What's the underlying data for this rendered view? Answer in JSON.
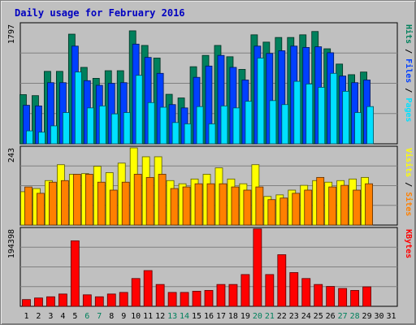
{
  "chart_data": {
    "type": "bar",
    "title": "Daily usage for February 2016",
    "days": [
      "1",
      "2",
      "3",
      "4",
      "5",
      "6",
      "7",
      "8",
      "9",
      "10",
      "11",
      "12",
      "13",
      "14",
      "15",
      "16",
      "17",
      "18",
      "19",
      "20",
      "21",
      "22",
      "23",
      "24",
      "25",
      "26",
      "27",
      "28",
      "29",
      "30",
      "31"
    ],
    "weekend_days": [
      6,
      7,
      13,
      14,
      20,
      21,
      27,
      28
    ],
    "grid": true,
    "panels": [
      {
        "id": "hits-files-pages",
        "max_label": "1797",
        "ylim": [
          0,
          1797
        ],
        "right_labels": [
          {
            "text": "Hits",
            "color": "#00805c"
          },
          {
            "text": " / ",
            "color": "#000000"
          },
          {
            "text": "Files",
            "color": "#0040ff"
          },
          {
            "text": " / ",
            "color": "#000000"
          },
          {
            "text": "Pages",
            "color": "#00e0ff"
          }
        ],
        "series": [
          {
            "name": "Hits",
            "color": "#00805c",
            "values": [
              740,
              725,
              1090,
              1090,
              1650,
              1150,
              985,
              1100,
              1100,
              1700,
              1480,
              1290,
              745,
              690,
              1160,
              1330,
              1480,
              1310,
              1120,
              1640,
              1530,
              1600,
              1600,
              1640,
              1690,
              1430,
              1200,
              1040,
              1080,
              0,
              0
            ]
          },
          {
            "name": "Files",
            "color": "#0040ff",
            "values": [
              580,
              570,
              920,
              920,
              1470,
              950,
              880,
              910,
              920,
              1500,
              1300,
              1060,
              590,
              540,
              1000,
              1170,
              1330,
              1150,
              960,
              1470,
              1360,
              1400,
              1470,
              1450,
              1460,
              1370,
              1020,
              920,
              960,
              0,
              0
            ]
          },
          {
            "name": "Pages",
            "color": "#00e0ff",
            "values": [
              195,
              175,
              270,
              470,
              1080,
              540,
              570,
              450,
              470,
              1030,
              620,
              550,
              320,
              300,
              560,
              300,
              570,
              540,
              640,
              1290,
              650,
              590,
              940,
              900,
              850,
              1060,
              790,
              470,
              560,
              0,
              0
            ]
          }
        ]
      },
      {
        "id": "visits-sites",
        "max_label": "243",
        "ylim": [
          0,
          243
        ],
        "right_labels": [
          {
            "text": "Visits",
            "color": "#ffff00"
          },
          {
            "text": " / ",
            "color": "#000000"
          },
          {
            "text": "Sites",
            "color": "#ff8000"
          }
        ],
        "series": [
          {
            "name": "Visits",
            "color": "#ffff00",
            "values": [
              105,
              115,
              140,
              190,
              160,
              162,
              185,
              165,
              195,
              243,
              215,
              215,
              140,
              130,
              145,
              160,
              180,
              145,
              130,
              190,
              90,
              95,
              110,
              125,
              140,
              135,
              140,
              145,
              150,
              0,
              0
            ]
          },
          {
            "name": "Sites",
            "color": "#ff8000",
            "values": [
              120,
              100,
              135,
              140,
              160,
              160,
              135,
              110,
              135,
              160,
              150,
              160,
              115,
              120,
              130,
              130,
              130,
              120,
              110,
              120,
              80,
              85,
              100,
              110,
              150,
              120,
              125,
              110,
              130,
              0,
              0
            ]
          }
        ]
      },
      {
        "id": "kbytes",
        "max_label": "194398",
        "ylim": [
          0,
          194398
        ],
        "right_labels": [
          {
            "text": "KBytes",
            "color": "#ff0000"
          }
        ],
        "series": [
          {
            "name": "KBytes",
            "color": "#ff0000",
            "values": [
              17000,
              21000,
              24000,
              31000,
              165000,
              29000,
              24000,
              31000,
              35000,
              70000,
              90000,
              55000,
              35000,
              35000,
              38000,
              40000,
              55000,
              55000,
              80000,
              195000,
              80000,
              130000,
              85000,
              70000,
              55000,
              50000,
              45000,
              40000,
              49000,
              0,
              0
            ]
          }
        ]
      }
    ]
  }
}
